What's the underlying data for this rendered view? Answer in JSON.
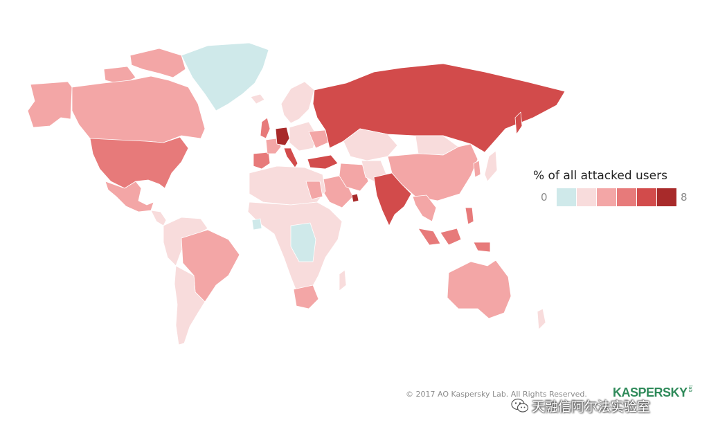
{
  "legend": {
    "title": "% of all attacked users",
    "min_label": "0",
    "max_label": "8",
    "scale_colors": [
      "#cfe9ea",
      "#f8dcdc",
      "#f3a6a6",
      "#e77a7a",
      "#d24b4b",
      "#a82a2a"
    ]
  },
  "footer": {
    "copyright": "© 2017 AO Kaspersky Lab. All Rights Reserved.",
    "logo_text": "KASPERSKY",
    "logo_sub": "lab"
  },
  "watermark": {
    "icon": "wechat-icon",
    "text": "天融信阿尔法实验室"
  },
  "map": {
    "colors": {
      "lightest": "#f8dcdc",
      "light": "#f3a6a6",
      "medium": "#e77a7a",
      "strong": "#d24b4b",
      "darkest": "#a82a2a",
      "cyan": "#cfe9ea"
    }
  }
}
